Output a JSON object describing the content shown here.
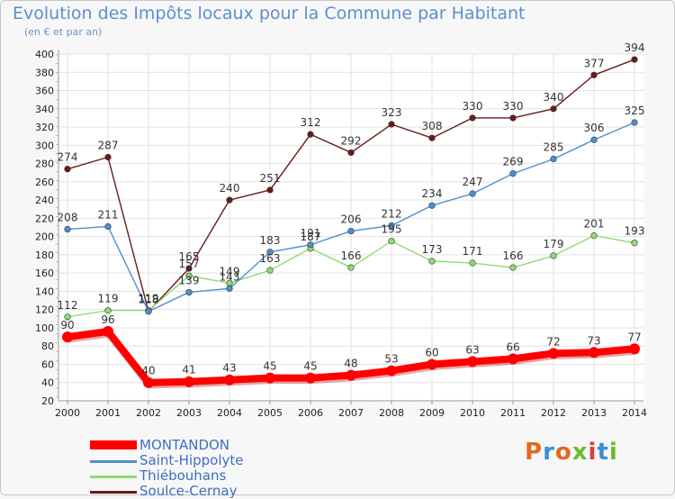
{
  "header": {
    "title": "Evolution des Impôts locaux pour la Commune par Habitant",
    "subtitle": "(en € et par an)"
  },
  "logo": {
    "text": "Proxiti",
    "colors": [
      "#e06b1f",
      "#3f8dd6",
      "#e06b1f",
      "#6aba2f",
      "#e03b3b",
      "#3f8dd6",
      "#6aba2f"
    ]
  },
  "chart_data": {
    "type": "line",
    "title": "Evolution des Impôts locaux pour la Commune par Habitant",
    "subtitle": "(en € et par an)",
    "xlabel": "",
    "ylabel": "",
    "categories": [
      "2000",
      "2001",
      "2002",
      "2003",
      "2004",
      "2005",
      "2006",
      "2007",
      "2008",
      "2009",
      "2010",
      "2011",
      "2012",
      "2013",
      "2014"
    ],
    "ylim": [
      20,
      400
    ],
    "yticks": [
      20,
      40,
      60,
      80,
      100,
      120,
      140,
      160,
      180,
      200,
      220,
      240,
      260,
      280,
      300,
      320,
      340,
      360,
      380,
      400
    ],
    "grid": true,
    "legend_placement": "bottom-left",
    "series": [
      {
        "name": "MONTANDON",
        "color": "#ff0000",
        "values": [
          90,
          96,
          40,
          41,
          43,
          45,
          45,
          48,
          53,
          60,
          63,
          66,
          72,
          73,
          77
        ]
      },
      {
        "name": "Saint-Hippolyte",
        "color": "#4f8fd1",
        "values": [
          208,
          211,
          118,
          139,
          143,
          183,
          191,
          206,
          212,
          234,
          247,
          269,
          285,
          306,
          325
        ]
      },
      {
        "name": "Thiébouhans",
        "color": "#8fdc6f",
        "values": [
          112,
          119,
          119,
          157,
          149,
          163,
          187,
          166,
          195,
          173,
          171,
          166,
          179,
          201,
          193
        ]
      },
      {
        "name": "Soulce-Cernay",
        "color": "#6b1a1a",
        "values": [
          274,
          287,
          118,
          165,
          240,
          251,
          312,
          292,
          323,
          308,
          330,
          330,
          340,
          377,
          394
        ]
      }
    ]
  }
}
